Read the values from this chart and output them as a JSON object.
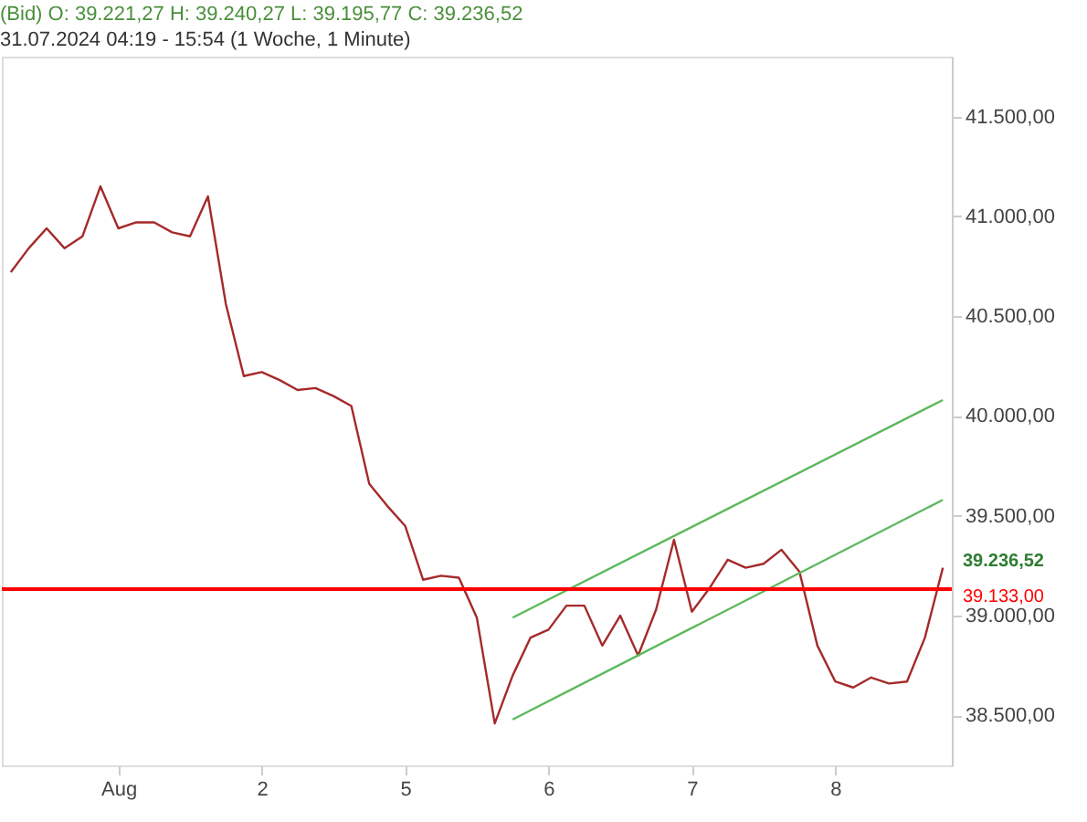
{
  "chart_data": {
    "type": "line",
    "title": "(Bid)  O: 39.221,27  H: 39.240,27  L: 39.195,77  C: 39.236,52",
    "subtitle": "31.07.2024 04:19 - 15:54 (1 Woche, 1 Minute)",
    "categories": [
      null,
      null,
      null,
      null,
      null,
      null,
      "Aug",
      null,
      null,
      null,
      null,
      null,
      null,
      null,
      "2",
      null,
      null,
      null,
      null,
      null,
      null,
      null,
      "5",
      null,
      null,
      null,
      null,
      null,
      null,
      null,
      "6",
      null,
      null,
      null,
      null,
      null,
      null,
      null,
      "7",
      null,
      null,
      null,
      null,
      null,
      null,
      null,
      "8",
      null,
      null,
      null,
      null,
      null,
      null
    ],
    "ylim": [
      38250,
      41800
    ],
    "yticks": [
      {
        "value": 38500,
        "label": "38.500,00"
      },
      {
        "value": 39000,
        "label": "39.000,00"
      },
      {
        "value": 39500,
        "label": "39.500,00"
      },
      {
        "value": 40000,
        "label": "40.000,00"
      },
      {
        "value": 40500,
        "label": "40.500,00"
      },
      {
        "value": 41000,
        "label": "41.000,00"
      },
      {
        "value": 41500,
        "label": "41.500,00"
      }
    ],
    "grid": false,
    "line_style": "solid",
    "marker": "none",
    "series": [
      {
        "color": "#a52a2a",
        "values": [
          40720,
          40840,
          40940,
          40840,
          40900,
          41150,
          40940,
          40970,
          40970,
          40920,
          40900,
          41100,
          40560,
          40200,
          40220,
          40180,
          40130,
          40140,
          40100,
          40050,
          39660,
          39550,
          39450,
          39180,
          39200,
          39190,
          38990,
          38460,
          38700,
          38890,
          38930,
          39050,
          39050,
          38850,
          39000,
          38800,
          39030,
          39380,
          39020,
          39140,
          39280,
          39240,
          39260,
          39330,
          39220,
          38850,
          38670,
          38640,
          38690,
          38660,
          38670,
          38890,
          39240
        ]
      },
      {
        "type": "line",
        "color": "#5cb85c",
        "values": [
          null,
          null,
          null,
          null,
          null,
          null,
          null,
          null,
          null,
          null,
          null,
          null,
          null,
          null,
          null,
          null,
          null,
          null,
          null,
          null,
          null,
          null,
          null,
          null,
          null,
          null,
          null,
          null,
          38480,
          null,
          null,
          null,
          null,
          null,
          null,
          null,
          null,
          null,
          null,
          null,
          null,
          null,
          null,
          null,
          null,
          null,
          null,
          null,
          null,
          null,
          null,
          null,
          39580
        ]
      },
      {
        "type": "line",
        "color": "#5cb85c",
        "values": [
          null,
          null,
          null,
          null,
          null,
          null,
          null,
          null,
          null,
          null,
          null,
          null,
          null,
          null,
          null,
          null,
          null,
          null,
          null,
          null,
          null,
          null,
          null,
          null,
          null,
          null,
          null,
          null,
          38990,
          null,
          null,
          null,
          null,
          null,
          null,
          null,
          null,
          null,
          null,
          null,
          null,
          null,
          null,
          null,
          null,
          null,
          null,
          null,
          null,
          null,
          null,
          null,
          40080
        ]
      }
    ],
    "ref_lines": [
      {
        "axis": "y",
        "value": 39133,
        "label": "39.133,00",
        "color": "#ff0000"
      }
    ],
    "annotations": [
      "39.236,52"
    ]
  }
}
